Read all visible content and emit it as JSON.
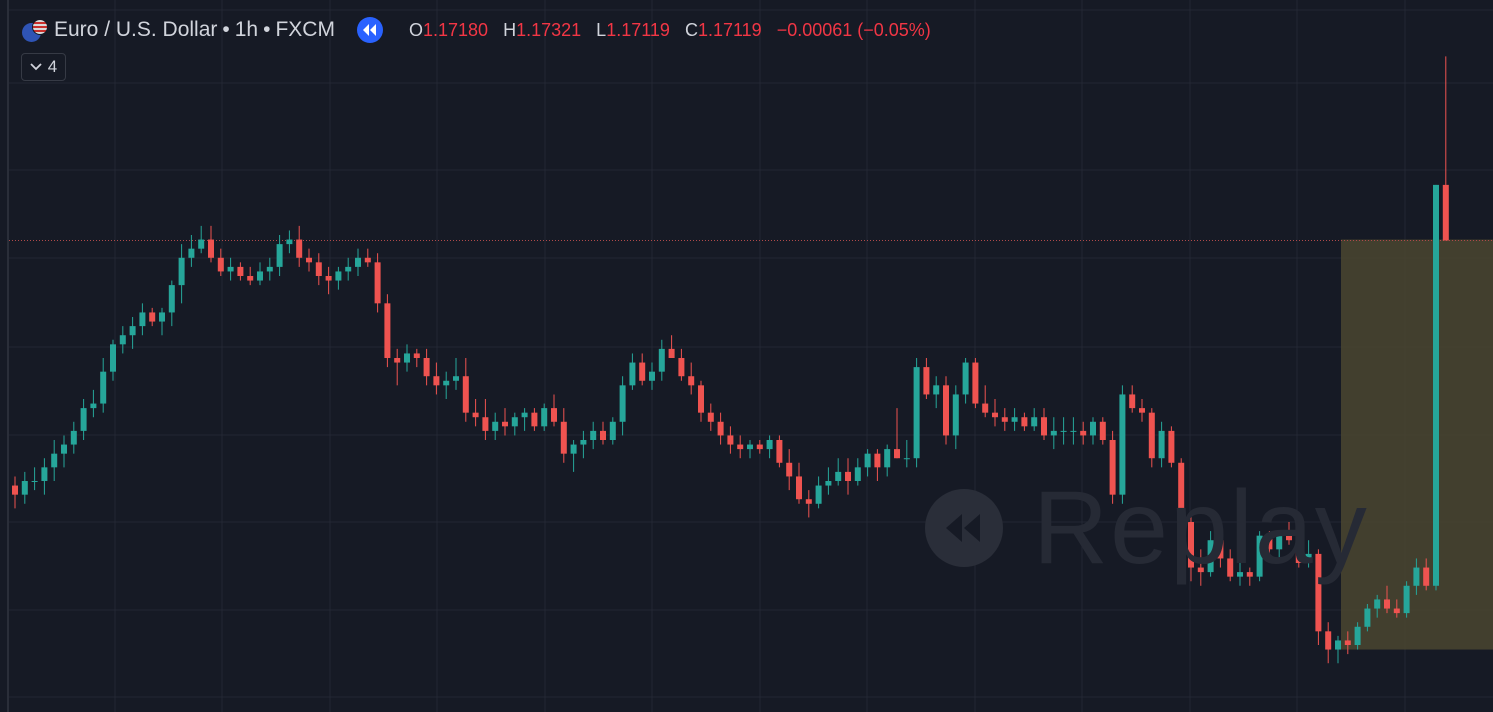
{
  "symbol": {
    "name": "Euro / U.S. Dollar",
    "interval": "1h",
    "exchange": "FXCM",
    "flag_icon": "eu-us-flag-icon"
  },
  "ohlc": {
    "open_key": "O",
    "open": "1.17180",
    "high_key": "H",
    "high": "1.17321",
    "low_key": "L",
    "low": "1.17119",
    "close_key": "C",
    "close": "1.17119",
    "change": "−0.00061 (−0.05%)",
    "change_color": "#f23645"
  },
  "replay_button_icon": "replay-rewind-icon",
  "indicators": {
    "count": "4",
    "icon": "chevron-down-icon"
  },
  "watermark": {
    "text": "Replay",
    "icon": "rewind-icon"
  },
  "colors": {
    "background": "#161a25",
    "up": "#26a69a",
    "down": "#ef5350",
    "grid": "#232733",
    "zone": "#4a4630",
    "price_line": "#b04a4a"
  },
  "chart_data": {
    "type": "candlestick",
    "x_unit": "hourly bars",
    "zone": {
      "top": 1.1712,
      "bottom": 1.1667,
      "from_bar": 135
    },
    "price_line": 1.17119,
    "candles": [
      [
        1.1685,
        1.1686,
        1.16825,
        1.1684
      ],
      [
        1.1684,
        1.16865,
        1.1683,
        1.16855
      ],
      [
        1.16855,
        1.1687,
        1.16845,
        1.16855
      ],
      [
        1.16855,
        1.1688,
        1.1684,
        1.1687
      ],
      [
        1.1687,
        1.169,
        1.16855,
        1.16885
      ],
      [
        1.16885,
        1.16905,
        1.1687,
        1.16895
      ],
      [
        1.16895,
        1.1692,
        1.16885,
        1.1691
      ],
      [
        1.1691,
        1.16945,
        1.169,
        1.16935
      ],
      [
        1.16935,
        1.16955,
        1.16925,
        1.1694
      ],
      [
        1.1694,
        1.1699,
        1.1693,
        1.16975
      ],
      [
        1.16975,
        1.1701,
        1.16965,
        1.17005
      ],
      [
        1.17005,
        1.17025,
        1.16995,
        1.17015
      ],
      [
        1.17015,
        1.17035,
        1.17,
        1.17025
      ],
      [
        1.17025,
        1.1705,
        1.17015,
        1.1704
      ],
      [
        1.1704,
        1.17045,
        1.17025,
        1.1703
      ],
      [
        1.1703,
        1.17045,
        1.17015,
        1.1704
      ],
      [
        1.1704,
        1.17075,
        1.17025,
        1.1707
      ],
      [
        1.1707,
        1.17115,
        1.1705,
        1.171
      ],
      [
        1.171,
        1.17125,
        1.1709,
        1.1711
      ],
      [
        1.1711,
        1.17135,
        1.17105,
        1.1712
      ],
      [
        1.1712,
        1.17135,
        1.17095,
        1.171
      ],
      [
        1.171,
        1.1711,
        1.1708,
        1.17085
      ],
      [
        1.17085,
        1.171,
        1.17075,
        1.1709
      ],
      [
        1.1709,
        1.17095,
        1.17075,
        1.1708
      ],
      [
        1.1708,
        1.1709,
        1.1707,
        1.17075
      ],
      [
        1.17075,
        1.17095,
        1.1707,
        1.17085
      ],
      [
        1.17085,
        1.171,
        1.17075,
        1.1709
      ],
      [
        1.1709,
        1.17125,
        1.1708,
        1.17115
      ],
      [
        1.17115,
        1.1713,
        1.17105,
        1.1712
      ],
      [
        1.1712,
        1.17135,
        1.1709,
        1.171
      ],
      [
        1.171,
        1.1711,
        1.17085,
        1.17095
      ],
      [
        1.17095,
        1.17105,
        1.1707,
        1.1708
      ],
      [
        1.1708,
        1.1709,
        1.1706,
        1.17075
      ],
      [
        1.17075,
        1.1709,
        1.17065,
        1.17085
      ],
      [
        1.17085,
        1.171,
        1.17075,
        1.1709
      ],
      [
        1.1709,
        1.1711,
        1.1708,
        1.171
      ],
      [
        1.171,
        1.1711,
        1.1709,
        1.17095
      ],
      [
        1.17095,
        1.17105,
        1.1704,
        1.1705
      ],
      [
        1.1705,
        1.1706,
        1.1698,
        1.1699
      ],
      [
        1.1699,
        1.17,
        1.1696,
        1.16985
      ],
      [
        1.16985,
        1.17005,
        1.16975,
        1.16995
      ],
      [
        1.16995,
        1.17,
        1.1698,
        1.1699
      ],
      [
        1.1699,
        1.17,
        1.1696,
        1.1697
      ],
      [
        1.1697,
        1.16985,
        1.1695,
        1.1696
      ],
      [
        1.1696,
        1.16975,
        1.16945,
        1.16965
      ],
      [
        1.16965,
        1.1699,
        1.16955,
        1.1697
      ],
      [
        1.1697,
        1.1699,
        1.1692,
        1.1693
      ],
      [
        1.1693,
        1.16945,
        1.16915,
        1.16925
      ],
      [
        1.16925,
        1.16945,
        1.169,
        1.1691
      ],
      [
        1.1691,
        1.1693,
        1.169,
        1.1692
      ],
      [
        1.1692,
        1.16935,
        1.16905,
        1.16915
      ],
      [
        1.16915,
        1.1693,
        1.16905,
        1.16925
      ],
      [
        1.16925,
        1.16935,
        1.1691,
        1.1693
      ],
      [
        1.1693,
        1.16935,
        1.1691,
        1.16915
      ],
      [
        1.16915,
        1.1694,
        1.1691,
        1.16935
      ],
      [
        1.16935,
        1.1695,
        1.16915,
        1.1692
      ],
      [
        1.1692,
        1.16935,
        1.16875,
        1.16885
      ],
      [
        1.16885,
        1.169,
        1.16865,
        1.16895
      ],
      [
        1.16895,
        1.1691,
        1.1688,
        1.169
      ],
      [
        1.169,
        1.1692,
        1.1689,
        1.1691
      ],
      [
        1.1691,
        1.1692,
        1.16895,
        1.169
      ],
      [
        1.169,
        1.16925,
        1.16895,
        1.1692
      ],
      [
        1.1692,
        1.1697,
        1.16905,
        1.1696
      ],
      [
        1.1696,
        1.16995,
        1.16955,
        1.16985
      ],
      [
        1.16985,
        1.16995,
        1.1696,
        1.16965
      ],
      [
        1.16965,
        1.16985,
        1.16955,
        1.16975
      ],
      [
        1.16975,
        1.1701,
        1.16965,
        1.17
      ],
      [
        1.17,
        1.17015,
        1.1699,
        1.1699
      ],
      [
        1.1699,
        1.17,
        1.16965,
        1.1697
      ],
      [
        1.1697,
        1.16985,
        1.1695,
        1.1696
      ],
      [
        1.1696,
        1.16965,
        1.1692,
        1.1693
      ],
      [
        1.1693,
        1.1694,
        1.1691,
        1.1692
      ],
      [
        1.1692,
        1.1693,
        1.16895,
        1.16905
      ],
      [
        1.16905,
        1.16915,
        1.16885,
        1.16895
      ],
      [
        1.16895,
        1.16905,
        1.1688,
        1.1689
      ],
      [
        1.1689,
        1.169,
        1.1688,
        1.16895
      ],
      [
        1.16895,
        1.169,
        1.16885,
        1.1689
      ],
      [
        1.1689,
        1.16905,
        1.1688,
        1.169
      ],
      [
        1.169,
        1.16905,
        1.1687,
        1.16875
      ],
      [
        1.16875,
        1.1689,
        1.16845,
        1.1686
      ],
      [
        1.1686,
        1.16875,
        1.1683,
        1.16835
      ],
      [
        1.16835,
        1.16845,
        1.16815,
        1.1683
      ],
      [
        1.1683,
        1.1686,
        1.16825,
        1.1685
      ],
      [
        1.1685,
        1.1687,
        1.1684,
        1.16855
      ],
      [
        1.16855,
        1.1688,
        1.1685,
        1.16865
      ],
      [
        1.16865,
        1.1688,
        1.1684,
        1.16855
      ],
      [
        1.16855,
        1.1688,
        1.1685,
        1.1687
      ],
      [
        1.1687,
        1.1689,
        1.1686,
        1.16885
      ],
      [
        1.16885,
        1.1689,
        1.16855,
        1.1687
      ],
      [
        1.1687,
        1.16895,
        1.1686,
        1.1689
      ],
      [
        1.1689,
        1.16935,
        1.1688,
        1.1688
      ],
      [
        1.1688,
        1.169,
        1.1687,
        1.1688
      ],
      [
        1.1688,
        1.1699,
        1.1687,
        1.1698
      ],
      [
        1.1698,
        1.1699,
        1.16945,
        1.1695
      ],
      [
        1.1695,
        1.1697,
        1.16935,
        1.1696
      ],
      [
        1.1696,
        1.1697,
        1.16895,
        1.16905
      ],
      [
        1.16905,
        1.1696,
        1.1689,
        1.1695
      ],
      [
        1.1695,
        1.1699,
        1.1694,
        1.16985
      ],
      [
        1.16985,
        1.1699,
        1.16935,
        1.1694
      ],
      [
        1.1694,
        1.1696,
        1.16925,
        1.1693
      ],
      [
        1.1693,
        1.16945,
        1.16915,
        1.16925
      ],
      [
        1.16925,
        1.16935,
        1.1691,
        1.1692
      ],
      [
        1.1692,
        1.16935,
        1.1691,
        1.16925
      ],
      [
        1.16925,
        1.1693,
        1.1691,
        1.16915
      ],
      [
        1.16915,
        1.16935,
        1.1691,
        1.16925
      ],
      [
        1.16925,
        1.16935,
        1.169,
        1.16905
      ],
      [
        1.16905,
        1.16925,
        1.1689,
        1.1691
      ],
      [
        1.1691,
        1.16925,
        1.16895,
        1.1691
      ],
      [
        1.1691,
        1.16925,
        1.16895,
        1.1691
      ],
      [
        1.1691,
        1.1692,
        1.16895,
        1.16905
      ],
      [
        1.16905,
        1.16925,
        1.16895,
        1.1692
      ],
      [
        1.1692,
        1.16925,
        1.16895,
        1.169
      ],
      [
        1.169,
        1.1691,
        1.1683,
        1.1684
      ],
      [
        1.1684,
        1.1696,
        1.1683,
        1.1695
      ],
      [
        1.1695,
        1.1696,
        1.1693,
        1.16935
      ],
      [
        1.16935,
        1.16945,
        1.1692,
        1.1693
      ],
      [
        1.1693,
        1.16935,
        1.1687,
        1.1688
      ],
      [
        1.1688,
        1.1692,
        1.1687,
        1.1691
      ],
      [
        1.1691,
        1.16915,
        1.1687,
        1.16875
      ],
      [
        1.16875,
        1.1688,
        1.168,
        1.1681
      ],
      [
        1.1681,
        1.1682,
        1.16745,
        1.1676
      ],
      [
        1.1676,
        1.1678,
        1.1674,
        1.16755
      ],
      [
        1.16755,
        1.168,
        1.1675,
        1.1679
      ],
      [
        1.1679,
        1.168,
        1.1676,
        1.1677
      ],
      [
        1.1677,
        1.1678,
        1.16745,
        1.1675
      ],
      [
        1.1675,
        1.1677,
        1.1674,
        1.16755
      ],
      [
        1.16755,
        1.1676,
        1.1674,
        1.1675
      ],
      [
        1.1675,
        1.168,
        1.16745,
        1.16795
      ],
      [
        1.16795,
        1.168,
        1.16775,
        1.1678
      ],
      [
        1.1678,
        1.168,
        1.1677,
        1.168
      ],
      [
        1.168,
        1.1681,
        1.16785,
        1.1679
      ],
      [
        1.1679,
        1.16795,
        1.1676,
        1.16765
      ],
      [
        1.16765,
        1.1679,
        1.1676,
        1.16775
      ],
      [
        1.16775,
        1.1678,
        1.16675,
        1.1669
      ],
      [
        1.1669,
        1.167,
        1.16655,
        1.1667
      ],
      [
        1.1667,
        1.16685,
        1.16655,
        1.1668
      ],
      [
        1.1668,
        1.1669,
        1.16665,
        1.16675
      ],
      [
        1.16675,
        1.167,
        1.1667,
        1.16695
      ],
      [
        1.16695,
        1.1672,
        1.1669,
        1.16715
      ],
      [
        1.16715,
        1.1673,
        1.16705,
        1.16725
      ],
      [
        1.16725,
        1.1674,
        1.1671,
        1.16715
      ],
      [
        1.16715,
        1.16725,
        1.16705,
        1.1671
      ],
      [
        1.1671,
        1.16745,
        1.16705,
        1.1674
      ],
      [
        1.1674,
        1.1677,
        1.1673,
        1.1676
      ],
      [
        1.1676,
        1.1677,
        1.16735,
        1.1674
      ],
      [
        1.1674,
        1.1718,
        1.16735,
        1.1718
      ],
      [
        1.1718,
        1.17321,
        1.17119,
        1.17119
      ]
    ]
  }
}
